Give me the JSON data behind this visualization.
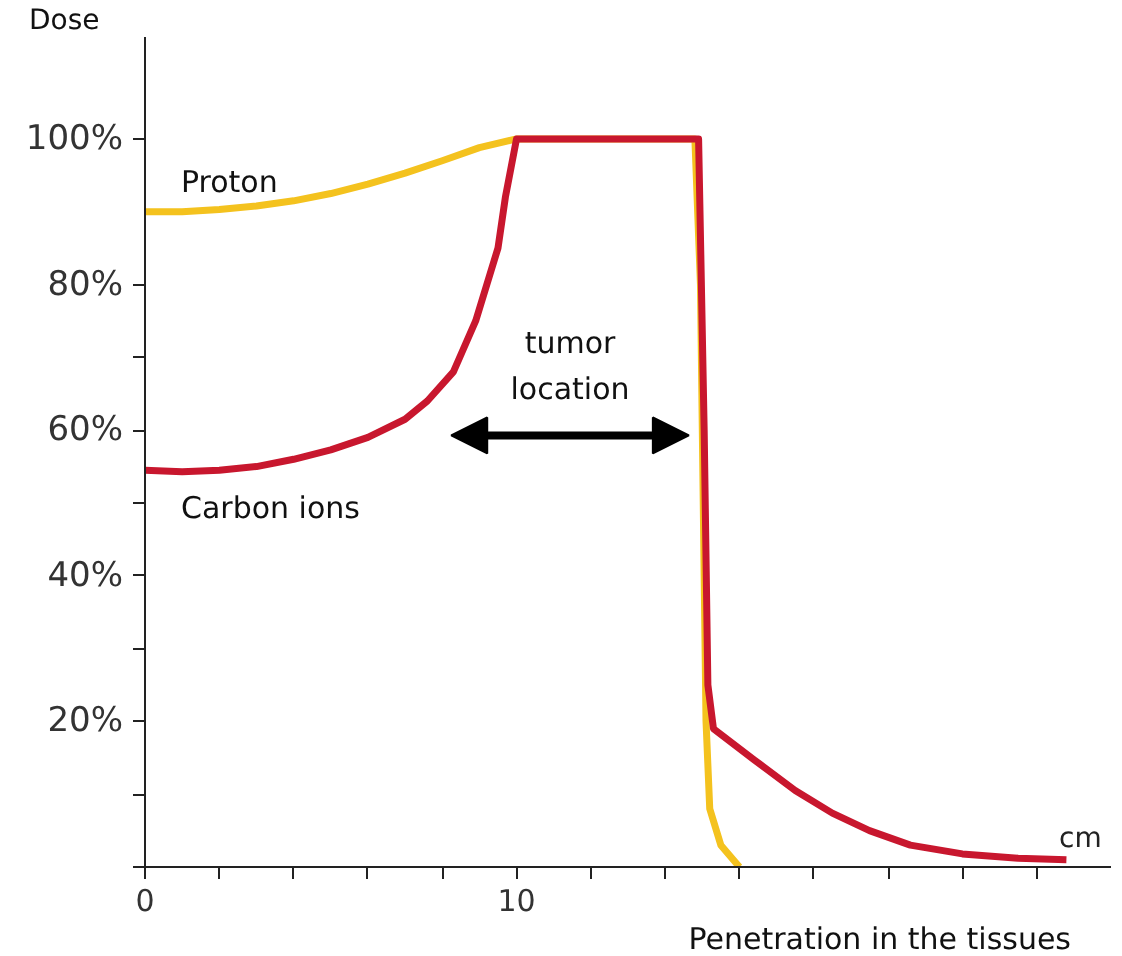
{
  "chart_data": {
    "type": "line",
    "xlabel": "Penetration in the tissues",
    "ylabel": "Dose",
    "xlim": [
      0,
      26
    ],
    "ylim": [
      0,
      114
    ],
    "xticks": [
      0,
      {
        "value": 2,
        "label": null
      },
      {
        "value": 4,
        "label": null
      },
      {
        "value": 6,
        "label": null
      },
      {
        "value": 8,
        "label": null
      },
      10,
      {
        "value": 12,
        "label": null
      },
      {
        "value": 14,
        "label": null
      },
      {
        "value": 16,
        "label": null
      },
      {
        "value": 18,
        "label": null
      },
      {
        "value": 20,
        "label": null
      },
      {
        "value": 22,
        "label": null
      },
      {
        "value": 24,
        "label": null
      }
    ],
    "yticks": [
      {
        "value": 0,
        "label": null
      },
      {
        "value": 10,
        "label": null
      },
      {
        "value": 20,
        "label": "20%"
      },
      {
        "value": 30,
        "label": null
      },
      {
        "value": 40,
        "label": "40%"
      },
      {
        "value": 50,
        "label": null
      },
      {
        "value": 60,
        "label": "60%"
      },
      {
        "value": 70,
        "label": null
      },
      {
        "value": 80,
        "label": "80%"
      },
      {
        "value": 100,
        "label": "100%"
      }
    ],
    "series": [
      {
        "name": "Proton",
        "color": "#f4c21e",
        "x": [
          0,
          1,
          2,
          3,
          4,
          5,
          6,
          7,
          8,
          9,
          10,
          11,
          12,
          13,
          14,
          14.8,
          14.95,
          15.05,
          15.1,
          15.2,
          15.5,
          16
        ],
        "values": [
          90,
          90,
          90.3,
          90.8,
          91.5,
          92.5,
          93.8,
          95.3,
          97,
          98.8,
          100,
          100,
          100,
          100,
          100,
          100,
          80,
          40,
          20,
          8,
          3,
          0
        ]
      },
      {
        "name": "Carbon ions",
        "color": "#c8172e",
        "x": [
          0,
          1,
          2,
          3,
          4,
          5,
          6,
          7,
          7.6,
          8.3,
          8.9,
          9.5,
          9.7,
          10,
          11,
          12,
          13,
          14,
          14.9,
          15.05,
          15.15,
          15.3,
          16.4,
          17.5,
          18.5,
          19.5,
          20.6,
          22,
          23.5,
          24.8
        ],
        "values": [
          54.5,
          54.3,
          54.5,
          55,
          56,
          57.3,
          59,
          61.5,
          64,
          68,
          75,
          85,
          92,
          100,
          100,
          100,
          100,
          100,
          100,
          60,
          25,
          19,
          14.7,
          10.5,
          7.4,
          5,
          3,
          1.8,
          1.2,
          1
        ],
        "marker": "none"
      }
    ],
    "grid": false,
    "marker": "none",
    "line_style": "solid",
    "annotations": [
      "tumor location",
      "cm"
    ]
  }
}
